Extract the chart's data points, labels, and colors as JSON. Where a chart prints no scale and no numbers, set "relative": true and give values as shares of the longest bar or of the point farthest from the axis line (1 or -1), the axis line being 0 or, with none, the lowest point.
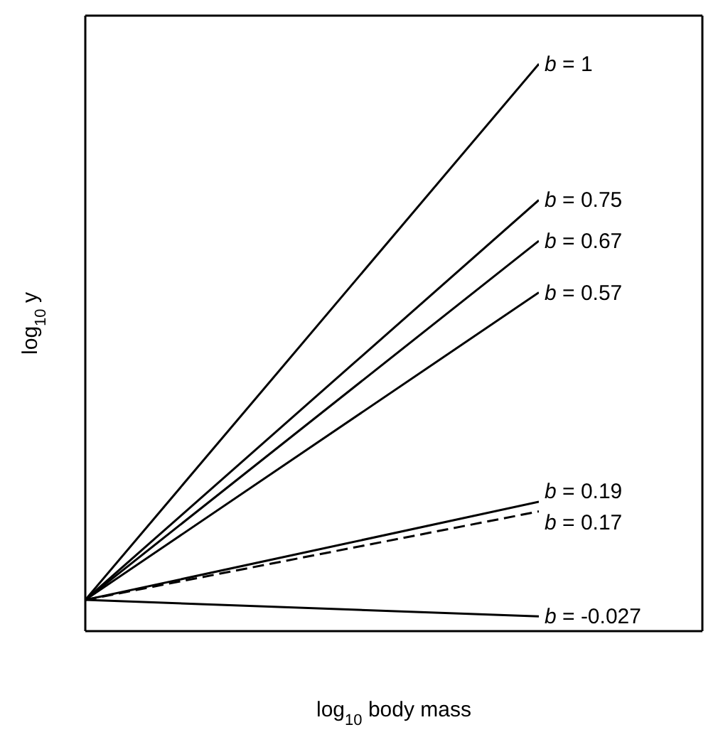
{
  "chart_data": {
    "type": "line",
    "relative": true,
    "xlabel": "log$_{10}$ body mass",
    "ylabel": "log$_{10}$ y",
    "categories": [
      null,
      null
    ],
    "marker": "none",
    "line_style": "solid",
    "series": [
      {
        "name": "b = 1",
        "color": "#000000",
        "values": [
          0.055,
          1
        ]
      },
      {
        "name": "b = 0.75",
        "color": "#000000",
        "values": [
          0.055,
          0.76
        ]
      },
      {
        "name": "b = 0.67",
        "color": "#000000",
        "values": [
          0.055,
          0.688
        ]
      },
      {
        "name": "b = 0.57",
        "color": "#000000",
        "values": [
          0.055,
          0.597
        ]
      },
      {
        "name": "b = 0.19",
        "color": "#000000",
        "values": [
          0.055,
          0.228
        ]
      },
      {
        "name": "b = 0.17",
        "color": "#000000",
        "values": [
          0.055,
          0.211
        ],
        "line_style": "dashed"
      },
      {
        "name": "b = -0.027",
        "color": "#000000",
        "values": [
          0.055,
          0.026
        ]
      }
    ]
  }
}
